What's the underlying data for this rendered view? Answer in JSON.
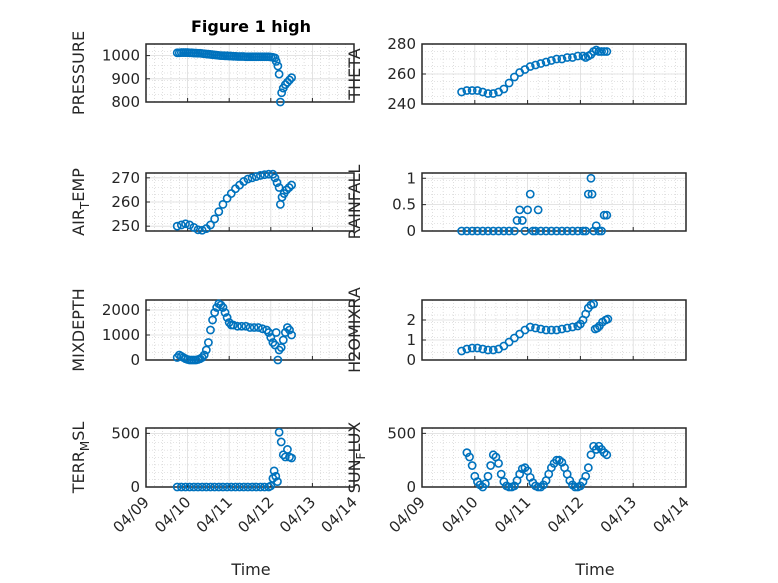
{
  "figure": {
    "title": "Figure 1 high",
    "xlabel": "Time",
    "marker_color": "#0072bd",
    "marker": "open-circle",
    "grid": "minor-dotted"
  },
  "chart_data": [
    {
      "type": "scatter",
      "ylabel": "PRESSURE",
      "ylim": [
        800,
        1050
      ],
      "yticks": [
        800,
        900,
        1000
      ],
      "xlim": [
        "2023-04-09",
        "2023-04-14"
      ],
      "x_day_offsets_start": "04/09",
      "points": [
        [
          0.75,
          1012
        ],
        [
          0.8,
          1012
        ],
        [
          0.85,
          1013
        ],
        [
          0.9,
          1013
        ],
        [
          0.95,
          1013
        ],
        [
          1.0,
          1013
        ],
        [
          1.05,
          1012
        ],
        [
          1.1,
          1012
        ],
        [
          1.15,
          1011
        ],
        [
          1.2,
          1011
        ],
        [
          1.25,
          1010
        ],
        [
          1.3,
          1010
        ],
        [
          1.35,
          1009
        ],
        [
          1.4,
          1008
        ],
        [
          1.45,
          1007
        ],
        [
          1.5,
          1006
        ],
        [
          1.55,
          1005
        ],
        [
          1.6,
          1004
        ],
        [
          1.65,
          1003
        ],
        [
          1.7,
          1002
        ],
        [
          1.75,
          1001
        ],
        [
          1.8,
          1000
        ],
        [
          1.85,
          1000
        ],
        [
          1.9,
          999
        ],
        [
          1.95,
          999
        ],
        [
          2.0,
          998
        ],
        [
          2.05,
          998
        ],
        [
          2.1,
          997
        ],
        [
          2.15,
          997
        ],
        [
          2.2,
          996
        ],
        [
          2.25,
          996
        ],
        [
          2.3,
          996
        ],
        [
          2.35,
          996
        ],
        [
          2.4,
          995
        ],
        [
          2.45,
          995
        ],
        [
          2.5,
          995
        ],
        [
          2.55,
          995
        ],
        [
          2.6,
          995
        ],
        [
          2.65,
          995
        ],
        [
          2.7,
          995
        ],
        [
          2.75,
          995
        ],
        [
          2.8,
          995
        ],
        [
          2.85,
          995
        ],
        [
          2.9,
          995
        ],
        [
          2.95,
          995
        ],
        [
          3.0,
          994
        ],
        [
          3.05,
          993
        ],
        [
          3.1,
          990
        ],
        [
          3.13,
          975
        ],
        [
          3.17,
          955
        ],
        [
          3.2,
          920
        ],
        [
          3.23,
          800
        ],
        [
          3.26,
          840
        ],
        [
          3.3,
          860
        ],
        [
          3.35,
          875
        ],
        [
          3.4,
          885
        ],
        [
          3.45,
          895
        ],
        [
          3.5,
          905
        ]
      ]
    },
    {
      "type": "scatter",
      "ylabel": "THETA",
      "ylim": [
        240,
        280
      ],
      "yticks": [
        240,
        260,
        280
      ],
      "points": [
        [
          0.75,
          248
        ],
        [
          0.85,
          249
        ],
        [
          0.95,
          249
        ],
        [
          1.05,
          249
        ],
        [
          1.15,
          248
        ],
        [
          1.25,
          247
        ],
        [
          1.35,
          247
        ],
        [
          1.45,
          248
        ],
        [
          1.55,
          250
        ],
        [
          1.65,
          254
        ],
        [
          1.75,
          258
        ],
        [
          1.85,
          261
        ],
        [
          1.95,
          263
        ],
        [
          2.05,
          265
        ],
        [
          2.15,
          266
        ],
        [
          2.25,
          267
        ],
        [
          2.35,
          268
        ],
        [
          2.45,
          269
        ],
        [
          2.55,
          270
        ],
        [
          2.65,
          270
        ],
        [
          2.75,
          271
        ],
        [
          2.85,
          271
        ],
        [
          2.95,
          272
        ],
        [
          3.05,
          272
        ],
        [
          3.1,
          271
        ],
        [
          3.15,
          272
        ],
        [
          3.2,
          273
        ],
        [
          3.25,
          275
        ],
        [
          3.3,
          276
        ],
        [
          3.35,
          275
        ],
        [
          3.4,
          275
        ],
        [
          3.45,
          275
        ],
        [
          3.5,
          275
        ]
      ]
    },
    {
      "type": "scatter",
      "ylabel": "AIR_TEMP",
      "ylim": [
        248,
        272
      ],
      "yticks": [
        250,
        260,
        270
      ],
      "points": [
        [
          0.75,
          250
        ],
        [
          0.85,
          250.5
        ],
        [
          0.95,
          251
        ],
        [
          1.05,
          250.5
        ],
        [
          1.15,
          249.5
        ],
        [
          1.25,
          248.5
        ],
        [
          1.35,
          248.3
        ],
        [
          1.45,
          249
        ],
        [
          1.55,
          250.5
        ],
        [
          1.65,
          253
        ],
        [
          1.75,
          256
        ],
        [
          1.85,
          259
        ],
        [
          1.95,
          261.5
        ],
        [
          2.05,
          263.5
        ],
        [
          2.15,
          265.5
        ],
        [
          2.25,
          267
        ],
        [
          2.35,
          268.5
        ],
        [
          2.45,
          269.5
        ],
        [
          2.55,
          270
        ],
        [
          2.65,
          270.5
        ],
        [
          2.75,
          271
        ],
        [
          2.85,
          271.3
        ],
        [
          2.95,
          271.5
        ],
        [
          3.05,
          271.5
        ],
        [
          3.1,
          270
        ],
        [
          3.15,
          268
        ],
        [
          3.2,
          266
        ],
        [
          3.23,
          259
        ],
        [
          3.27,
          262
        ],
        [
          3.32,
          263.5
        ],
        [
          3.38,
          265
        ],
        [
          3.44,
          266
        ],
        [
          3.5,
          267
        ]
      ]
    },
    {
      "type": "scatter",
      "ylabel": "RAINFALL",
      "ylim": [
        0,
        1.1
      ],
      "yticks": [
        0,
        0.5,
        1
      ],
      "points": [
        [
          0.75,
          0
        ],
        [
          0.85,
          0
        ],
        [
          0.95,
          0
        ],
        [
          1.05,
          0
        ],
        [
          1.15,
          0
        ],
        [
          1.25,
          0
        ],
        [
          1.35,
          0
        ],
        [
          1.45,
          0
        ],
        [
          1.55,
          0
        ],
        [
          1.65,
          0
        ],
        [
          1.75,
          0
        ],
        [
          1.8,
          0.2
        ],
        [
          1.85,
          0.4
        ],
        [
          1.9,
          0.2
        ],
        [
          1.95,
          0
        ],
        [
          2.0,
          0.4
        ],
        [
          2.05,
          0.7
        ],
        [
          2.1,
          0
        ],
        [
          2.15,
          0
        ],
        [
          2.2,
          0.4
        ],
        [
          2.25,
          0
        ],
        [
          2.35,
          0
        ],
        [
          2.45,
          0
        ],
        [
          2.55,
          0
        ],
        [
          2.65,
          0
        ],
        [
          2.75,
          0
        ],
        [
          2.85,
          0
        ],
        [
          2.95,
          0
        ],
        [
          3.05,
          0
        ],
        [
          3.1,
          0
        ],
        [
          3.15,
          0.7
        ],
        [
          3.2,
          1.0
        ],
        [
          3.22,
          0.7
        ],
        [
          3.25,
          0
        ],
        [
          3.3,
          0.1
        ],
        [
          3.35,
          0
        ],
        [
          3.4,
          0
        ],
        [
          3.45,
          0.3
        ],
        [
          3.5,
          0.3
        ]
      ]
    },
    {
      "type": "scatter",
      "ylabel": "MIXDEPTH",
      "ylim": [
        0,
        2400
      ],
      "yticks": [
        0,
        1000,
        2000
      ],
      "points": [
        [
          0.75,
          100
        ],
        [
          0.8,
          200
        ],
        [
          0.85,
          150
        ],
        [
          0.9,
          100
        ],
        [
          0.95,
          50
        ],
        [
          1.0,
          20
        ],
        [
          1.05,
          0
        ],
        [
          1.1,
          0
        ],
        [
          1.15,
          0
        ],
        [
          1.2,
          0
        ],
        [
          1.25,
          20
        ],
        [
          1.3,
          50
        ],
        [
          1.35,
          100
        ],
        [
          1.4,
          200
        ],
        [
          1.45,
          400
        ],
        [
          1.5,
          700
        ],
        [
          1.55,
          1200
        ],
        [
          1.6,
          1600
        ],
        [
          1.65,
          1900
        ],
        [
          1.7,
          2100
        ],
        [
          1.75,
          2250
        ],
        [
          1.8,
          2200
        ],
        [
          1.85,
          2100
        ],
        [
          1.9,
          1900
        ],
        [
          1.95,
          1700
        ],
        [
          2.0,
          1500
        ],
        [
          2.05,
          1400
        ],
        [
          2.1,
          1400
        ],
        [
          2.2,
          1350
        ],
        [
          2.3,
          1350
        ],
        [
          2.4,
          1350
        ],
        [
          2.5,
          1300
        ],
        [
          2.6,
          1300
        ],
        [
          2.7,
          1300
        ],
        [
          2.8,
          1250
        ],
        [
          2.9,
          1200
        ],
        [
          2.95,
          1100
        ],
        [
          3.0,
          900
        ],
        [
          3.05,
          700
        ],
        [
          3.1,
          600
        ],
        [
          3.13,
          1100
        ],
        [
          3.17,
          0
        ],
        [
          3.2,
          400
        ],
        [
          3.25,
          500
        ],
        [
          3.3,
          800
        ],
        [
          3.35,
          1100
        ],
        [
          3.4,
          1300
        ],
        [
          3.45,
          1200
        ],
        [
          3.5,
          1000
        ]
      ]
    },
    {
      "type": "scatter",
      "ylabel": "H2OMIXRA",
      "ylim": [
        0,
        3
      ],
      "yticks": [
        0,
        1,
        2
      ],
      "points": [
        [
          0.75,
          0.45
        ],
        [
          0.85,
          0.55
        ],
        [
          0.95,
          0.6
        ],
        [
          1.05,
          0.6
        ],
        [
          1.15,
          0.55
        ],
        [
          1.25,
          0.5
        ],
        [
          1.35,
          0.5
        ],
        [
          1.45,
          0.55
        ],
        [
          1.55,
          0.7
        ],
        [
          1.65,
          0.9
        ],
        [
          1.75,
          1.1
        ],
        [
          1.85,
          1.3
        ],
        [
          1.95,
          1.5
        ],
        [
          2.05,
          1.65
        ],
        [
          2.15,
          1.6
        ],
        [
          2.25,
          1.55
        ],
        [
          2.35,
          1.5
        ],
        [
          2.45,
          1.5
        ],
        [
          2.55,
          1.5
        ],
        [
          2.65,
          1.55
        ],
        [
          2.75,
          1.6
        ],
        [
          2.85,
          1.65
        ],
        [
          2.95,
          1.7
        ],
        [
          3.0,
          1.8
        ],
        [
          3.05,
          2.0
        ],
        [
          3.1,
          2.3
        ],
        [
          3.15,
          2.6
        ],
        [
          3.2,
          2.75
        ],
        [
          3.25,
          2.8
        ],
        [
          3.28,
          1.55
        ],
        [
          3.32,
          1.6
        ],
        [
          3.36,
          1.7
        ],
        [
          3.42,
          1.9
        ],
        [
          3.48,
          2.0
        ],
        [
          3.52,
          2.05
        ]
      ]
    },
    {
      "type": "scatter",
      "ylabel": "TERR_MSL",
      "ylim": [
        0,
        550
      ],
      "yticks": [
        0,
        500
      ],
      "points": [
        [
          0.75,
          0
        ],
        [
          0.85,
          0
        ],
        [
          0.95,
          0
        ],
        [
          1.05,
          0
        ],
        [
          1.15,
          0
        ],
        [
          1.25,
          0
        ],
        [
          1.35,
          0
        ],
        [
          1.45,
          0
        ],
        [
          1.55,
          0
        ],
        [
          1.65,
          0
        ],
        [
          1.75,
          0
        ],
        [
          1.85,
          0
        ],
        [
          1.95,
          0
        ],
        [
          2.05,
          0
        ],
        [
          2.15,
          0
        ],
        [
          2.25,
          0
        ],
        [
          2.35,
          0
        ],
        [
          2.45,
          0
        ],
        [
          2.55,
          0
        ],
        [
          2.65,
          0
        ],
        [
          2.75,
          0
        ],
        [
          2.85,
          0
        ],
        [
          2.95,
          0
        ],
        [
          3.0,
          10
        ],
        [
          3.05,
          80
        ],
        [
          3.08,
          150
        ],
        [
          3.12,
          100
        ],
        [
          3.16,
          50
        ],
        [
          3.2,
          510
        ],
        [
          3.25,
          420
        ],
        [
          3.3,
          300
        ],
        [
          3.35,
          280
        ],
        [
          3.4,
          350
        ],
        [
          3.45,
          280
        ],
        [
          3.5,
          270
        ]
      ]
    },
    {
      "type": "scatter",
      "ylabel": "SUN_FLUX",
      "ylim": [
        0,
        550
      ],
      "yticks": [
        0,
        500
      ],
      "points": [
        [
          0.85,
          320
        ],
        [
          0.9,
          280
        ],
        [
          0.95,
          200
        ],
        [
          1.0,
          100
        ],
        [
          1.05,
          50
        ],
        [
          1.1,
          20
        ],
        [
          1.15,
          0
        ],
        [
          1.2,
          30
        ],
        [
          1.25,
          100
        ],
        [
          1.3,
          200
        ],
        [
          1.35,
          300
        ],
        [
          1.4,
          280
        ],
        [
          1.45,
          220
        ],
        [
          1.5,
          120
        ],
        [
          1.55,
          50
        ],
        [
          1.6,
          10
        ],
        [
          1.65,
          0
        ],
        [
          1.7,
          0
        ],
        [
          1.75,
          10
        ],
        [
          1.8,
          60
        ],
        [
          1.85,
          120
        ],
        [
          1.9,
          170
        ],
        [
          1.95,
          180
        ],
        [
          2.0,
          150
        ],
        [
          2.05,
          90
        ],
        [
          2.1,
          40
        ],
        [
          2.15,
          10
        ],
        [
          2.2,
          0
        ],
        [
          2.25,
          0
        ],
        [
          2.3,
          20
        ],
        [
          2.35,
          60
        ],
        [
          2.4,
          120
        ],
        [
          2.45,
          180
        ],
        [
          2.5,
          220
        ],
        [
          2.55,
          250
        ],
        [
          2.6,
          250
        ],
        [
          2.65,
          230
        ],
        [
          2.7,
          180
        ],
        [
          2.75,
          120
        ],
        [
          2.8,
          60
        ],
        [
          2.85,
          20
        ],
        [
          2.9,
          0
        ],
        [
          2.95,
          0
        ],
        [
          3.0,
          10
        ],
        [
          3.05,
          50
        ],
        [
          3.1,
          100
        ],
        [
          3.15,
          180
        ],
        [
          3.2,
          300
        ],
        [
          3.25,
          380
        ],
        [
          3.3,
          350
        ],
        [
          3.35,
          380
        ],
        [
          3.4,
          350
        ],
        [
          3.45,
          320
        ],
        [
          3.5,
          300
        ]
      ]
    }
  ],
  "x_tick_labels": [
    "04/09",
    "04/10",
    "04/11",
    "04/12",
    "04/13",
    "04/14"
  ]
}
